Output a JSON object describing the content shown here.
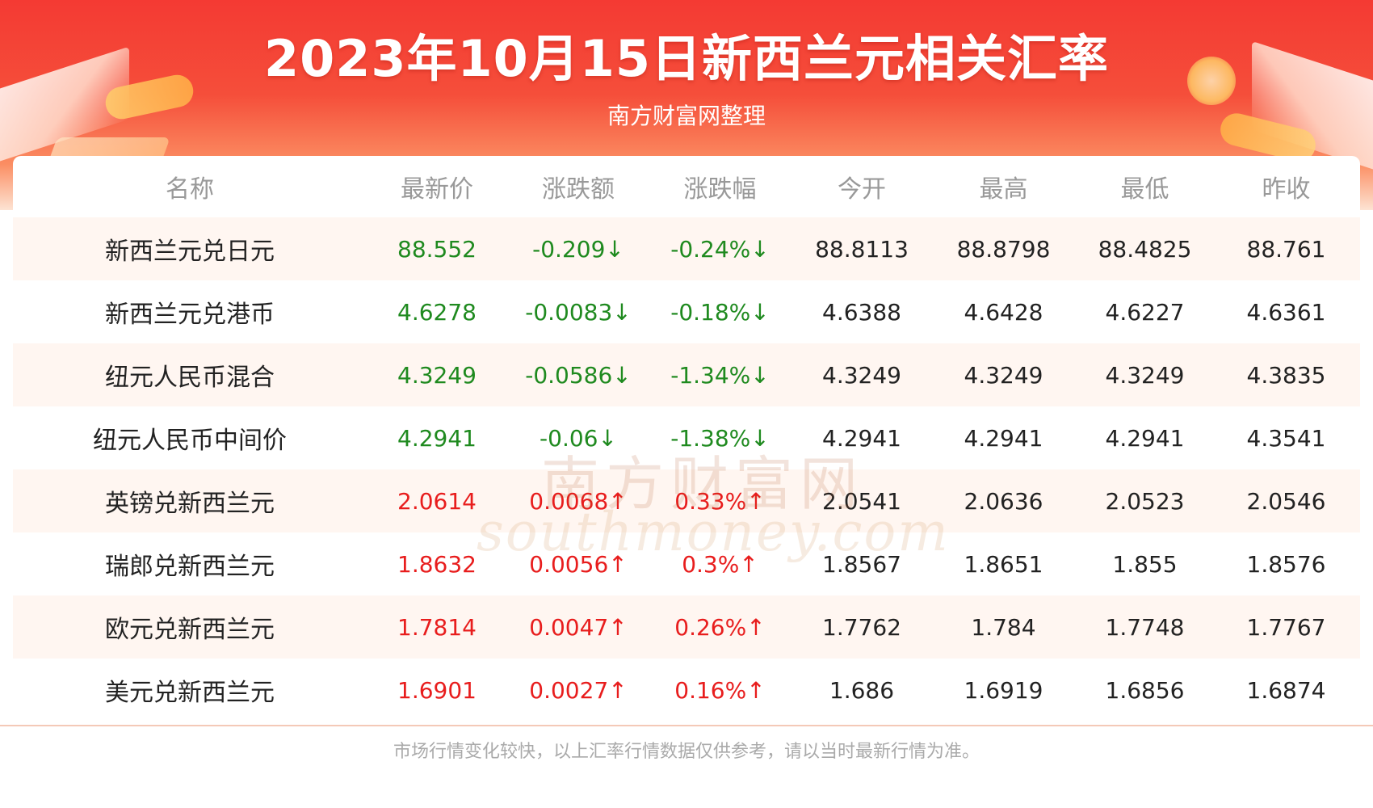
{
  "header": {
    "title": "2023年10月15日新西兰元相关汇率",
    "subtitle": "南方财富网整理"
  },
  "table": {
    "columns": [
      "名称",
      "最新价",
      "涨跌额",
      "涨跌幅",
      "今开",
      "最高",
      "最低",
      "昨收"
    ],
    "rows": [
      {
        "name": "新西兰元兑日元",
        "latest": "88.552",
        "change": "-0.209↓",
        "pct": "-0.24%↓",
        "open": "88.8113",
        "high": "88.8798",
        "low": "88.4825",
        "prev": "88.761",
        "trend": "down"
      },
      {
        "name": "新西兰元兑港币",
        "latest": "4.6278",
        "change": "-0.0083↓",
        "pct": "-0.18%↓",
        "open": "4.6388",
        "high": "4.6428",
        "low": "4.6227",
        "prev": "4.6361",
        "trend": "down"
      },
      {
        "name": "纽元人民币混合",
        "latest": "4.3249",
        "change": "-0.0586↓",
        "pct": "-1.34%↓",
        "open": "4.3249",
        "high": "4.3249",
        "low": "4.3249",
        "prev": "4.3835",
        "trend": "down"
      },
      {
        "name": "纽元人民币中间价",
        "latest": "4.2941",
        "change": "-0.06↓",
        "pct": "-1.38%↓",
        "open": "4.2941",
        "high": "4.2941",
        "low": "4.2941",
        "prev": "4.3541",
        "trend": "down"
      },
      {
        "name": "英镑兑新西兰元",
        "latest": "2.0614",
        "change": "0.0068↑",
        "pct": "0.33%↑",
        "open": "2.0541",
        "high": "2.0636",
        "low": "2.0523",
        "prev": "2.0546",
        "trend": "up"
      },
      {
        "name": "瑞郎兑新西兰元",
        "latest": "1.8632",
        "change": "0.0056↑",
        "pct": "0.3%↑",
        "open": "1.8567",
        "high": "1.8651",
        "low": "1.855",
        "prev": "1.8576",
        "trend": "up"
      },
      {
        "name": "欧元兑新西兰元",
        "latest": "1.7814",
        "change": "0.0047↑",
        "pct": "0.26%↑",
        "open": "1.7762",
        "high": "1.784",
        "low": "1.7748",
        "prev": "1.7767",
        "trend": "up"
      },
      {
        "name": "美元兑新西兰元",
        "latest": "1.6901",
        "change": "0.0027↑",
        "pct": "0.16%↑",
        "open": "1.686",
        "high": "1.6919",
        "low": "1.6856",
        "prev": "1.6874",
        "trend": "up"
      }
    ]
  },
  "watermark": {
    "cn": "南方财富网",
    "en": "southmoney.com"
  },
  "footer": {
    "note": "市场行情变化较快，以上汇率行情数据仅供参考，请以当时最新行情为准。"
  },
  "colors": {
    "up": "#e81d1d",
    "down": "#1f8a1f",
    "header_red": "#f43a33"
  }
}
